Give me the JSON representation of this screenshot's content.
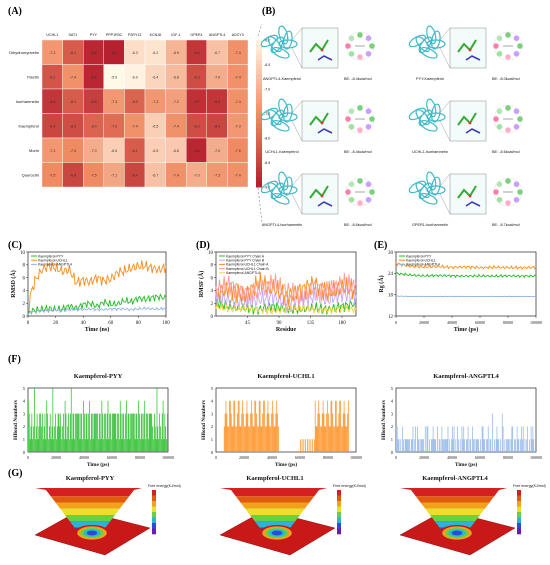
{
  "panel_labels": [
    "(A)",
    "(B)",
    "(C)",
    "(D)",
    "(E)",
    "(F)",
    "(G)"
  ],
  "colors": {
    "heat_low": "#b2182b",
    "heat_mid": "#ef8a62",
    "heat_high": "#fff2e0",
    "pyy": "#22bb22",
    "uchl1": "#ff8c1a",
    "angptl4": "#8fb4e6",
    "pyy_chain_b": "#c3a6ff",
    "uchl1_chain_b": "#ff9999"
  },
  "chart_data": [
    {
      "id": "A",
      "type": "heatmap",
      "columns": [
        "UCHL1",
        "SAT1",
        "PYY",
        "PPP1R3C",
        "P2RY13",
        "KCNJ8",
        "IGF-1",
        "GPER1",
        "ANGPTL4",
        "ADCY3"
      ],
      "rows": [
        "Dihydromyricetin",
        "Fisetin",
        "Isorhamnetin",
        "Kaempferol",
        "Morin",
        "Quercetin"
      ],
      "values": [
        [
          -7.3,
          -8.1,
          -8.8,
          -8.9,
          -6.3,
          -6.2,
          -6.9,
          -8.6,
          -6.7,
          -7.4
        ],
        [
          -8.2,
          -7.4,
          -8.8,
          -5.9,
          -6.0,
          -6.4,
          -6.8,
          -8.3,
          -7.0,
          -7.4
        ],
        [
          -8.6,
          -8.1,
          -8.5,
          -7.3,
          -8.0,
          -7.3,
          -7.2,
          -8.7,
          -8.6,
          -7.4
        ],
        [
          -8.4,
          -8.3,
          -8.0,
          -7.9,
          -7.4,
          -6.5,
          -7.4,
          -8.3,
          -8.4,
          -7.3
        ],
        [
          -7.3,
          -7.5,
          -7.0,
          -6.5,
          -8.1,
          -6.5,
          -6.6,
          -8.8,
          -7.0,
          -7.5
        ],
        [
          -7.5,
          -8.4,
          -7.5,
          -7.1,
          -8.4,
          -6.7,
          -7.4,
          -7.0,
          -7.3,
          -7.4
        ]
      ],
      "colorbar_ticks": [
        -6.0,
        -6.5,
        -7.0,
        -7.5,
        -8.0,
        -8.5,
        -9.0
      ]
    },
    {
      "id": "C",
      "type": "line",
      "xlabel": "Time (ns)",
      "ylabel": "RMSD (Å)",
      "xlim": [
        0,
        100
      ],
      "ylim": [
        0,
        10
      ],
      "xticks": [
        0,
        20,
        40,
        60,
        80,
        100
      ],
      "yticks": [
        0,
        2,
        4,
        6,
        8,
        10
      ],
      "legend_position": "top-left",
      "series": [
        {
          "name": "Kaempferol-PYY",
          "color": "#22bb22",
          "x": [
            0,
            2,
            5,
            10,
            15,
            20,
            25,
            30,
            35,
            40,
            45,
            50,
            55,
            60,
            65,
            70,
            75,
            80,
            85,
            90,
            95,
            100
          ],
          "y": [
            0.2,
            0.8,
            0.9,
            1.0,
            1.2,
            1.0,
            1.1,
            1.6,
            1.2,
            1.8,
            2.0,
            1.5,
            2.2,
            1.8,
            1.9,
            2.4,
            2.2,
            2.8,
            2.6,
            2.9,
            3.0,
            2.8
          ]
        },
        {
          "name": "Kaempferol-UCHL1",
          "color": "#ff8c1a",
          "x": [
            0,
            2,
            5,
            10,
            15,
            20,
            25,
            30,
            35,
            40,
            45,
            50,
            55,
            60,
            65,
            70,
            75,
            80,
            85,
            90,
            95,
            100
          ],
          "y": [
            0.5,
            3.5,
            5.5,
            7.2,
            7.8,
            7.5,
            7.0,
            7.2,
            5.2,
            5.6,
            5.3,
            6.0,
            5.5,
            5.8,
            6.8,
            7.0,
            7.5,
            7.8,
            7.8,
            7.5,
            7.2,
            7.6
          ]
        },
        {
          "name": "Kaempferol-ANGPTL4",
          "color": "#8fb4e6",
          "x": [
            0,
            2,
            5,
            10,
            15,
            20,
            25,
            30,
            35,
            40,
            45,
            50,
            55,
            60,
            65,
            70,
            75,
            80,
            85,
            90,
            95,
            100
          ],
          "y": [
            0.2,
            0.6,
            0.7,
            0.8,
            0.8,
            0.9,
            0.9,
            1.0,
            1.0,
            1.0,
            1.1,
            1.0,
            1.0,
            1.1,
            1.1,
            1.1,
            1.0,
            1.1,
            1.2,
            1.1,
            1.1,
            1.2
          ]
        }
      ]
    },
    {
      "id": "D",
      "type": "line",
      "xlabel": "Residue",
      "ylabel": "RMSF (Å)",
      "xlim": [
        0,
        200
      ],
      "ylim": [
        0,
        10
      ],
      "xticks": [
        45,
        90,
        135,
        180
      ],
      "yticks": [
        0,
        2,
        4,
        6,
        8,
        10
      ],
      "legend_position": "top-left",
      "series": [
        {
          "name": "Kaempferol-PYY Chain A",
          "color": "#22bb22",
          "x": [
            0,
            20,
            40,
            60,
            80,
            100,
            120,
            140,
            160,
            180,
            200
          ],
          "y": [
            2.0,
            1.5,
            1.2,
            1.0,
            1.5,
            1.2,
            1.0,
            1.3,
            1.0,
            1.5,
            2.0
          ]
        },
        {
          "name": "Kaempferol-PYY Chain B",
          "color": "#c3a6ff",
          "x": [
            0,
            20,
            40,
            60,
            80,
            100,
            120,
            140,
            160,
            180,
            200
          ],
          "y": [
            3.0,
            2.5,
            2.0,
            2.5,
            3.0,
            2.0,
            2.5,
            3.0,
            2.5,
            3.5,
            3.0
          ]
        },
        {
          "name": "Kaempferol-UCHL1 Chain A",
          "color": "#ff8c1a",
          "x": [
            0,
            20,
            40,
            60,
            80,
            100,
            120,
            140,
            160,
            180,
            200
          ],
          "y": [
            3.5,
            4.5,
            3.0,
            5.0,
            4.5,
            3.0,
            4.0,
            5.0,
            3.5,
            4.5,
            4.0
          ]
        },
        {
          "name": "Kaempferol-UCHL1 Chain B",
          "color": "#ff9999",
          "x": [
            0,
            20,
            40,
            60,
            80,
            100,
            120,
            140,
            160,
            180,
            200
          ],
          "y": [
            4.0,
            5.0,
            3.5,
            4.0,
            5.0,
            4.0,
            3.0,
            4.5,
            4.0,
            5.0,
            4.5
          ]
        },
        {
          "name": "Kaempferol-ANGPTL4",
          "color": "#f5d142",
          "x": [
            0,
            20,
            40,
            60,
            80,
            100,
            120,
            140,
            160,
            180,
            200
          ],
          "y": [
            1.5,
            1.0,
            1.2,
            1.0,
            0.8,
            1.0,
            1.2,
            1.0,
            0.9,
            1.2,
            1.0
          ]
        }
      ]
    },
    {
      "id": "E",
      "type": "line",
      "xlabel": "Time (ps)",
      "ylabel": "Rg (Å)",
      "xlim": [
        0,
        100000
      ],
      "ylim": [
        12,
        30
      ],
      "xticks": [
        0,
        20000,
        40000,
        60000,
        80000,
        100000
      ],
      "yticks": [
        12,
        18,
        24,
        30
      ],
      "legend_position": "top-left",
      "series": [
        {
          "name": "Kaempferol-PYY",
          "color": "#22bb22",
          "x": [
            0,
            10000,
            20000,
            30000,
            40000,
            50000,
            60000,
            70000,
            80000,
            90000,
            100000
          ],
          "y": [
            24.0,
            23.5,
            23.3,
            23.4,
            23.3,
            23.2,
            23.3,
            23.2,
            23.3,
            23.2,
            23.3
          ]
        },
        {
          "name": "Kaempferol-UCHL1",
          "color": "#ff8c1a",
          "x": [
            0,
            10000,
            20000,
            30000,
            40000,
            50000,
            60000,
            70000,
            80000,
            90000,
            100000
          ],
          "y": [
            26.8,
            26.0,
            25.8,
            25.9,
            25.7,
            25.8,
            25.6,
            25.7,
            25.6,
            25.6,
            25.7
          ]
        },
        {
          "name": "Kaempferol-ANGPTL4",
          "color": "#8fb4e6",
          "x": [
            0,
            10000,
            20000,
            30000,
            40000,
            50000,
            60000,
            70000,
            80000,
            90000,
            100000
          ],
          "y": [
            17.6,
            17.5,
            17.5,
            17.5,
            17.5,
            17.5,
            17.5,
            17.5,
            17.5,
            17.5,
            17.5
          ]
        }
      ]
    }
  ],
  "panel_B": {
    "complexes": [
      {
        "label": "ANGPTL4-Kaempferol",
        "be": "BE: -8.4kcal/mol"
      },
      {
        "label": "PYY-Kaempferol",
        "be": "BE: -8.0kcal/mol"
      },
      {
        "label": "UCHL1-Kaempferol",
        "be": "BE: -8.4kcal/mol"
      },
      {
        "label": "UCHL1-Isorhamnetin",
        "be": "BE: -8.6kcal/mol"
      },
      {
        "label": "ANGPTL4-Isorhamnetin",
        "be": "BE: -8.6kcal/mol"
      },
      {
        "label": "GPER1-Isorhamnetin",
        "be": "BE: -8.7kcal/mol"
      }
    ]
  },
  "panel_F": {
    "ylabel": "HBond Numbers",
    "xlabel": "Time (ps)",
    "xticks": [
      0,
      20000,
      40000,
      60000,
      80000,
      100000
    ],
    "yticks": [
      0,
      1,
      2,
      3,
      4,
      5
    ],
    "plots": [
      {
        "title": "Kaempferol-PYY",
        "color": "#22bb22"
      },
      {
        "title": "Kaempferol-UCHL1",
        "color": "#ff8c1a"
      },
      {
        "title": "Kaempferol-ANGPTL4",
        "color": "#8fb4e6"
      }
    ]
  },
  "panel_G": {
    "plots": [
      {
        "title": "Kaempferol-PYY",
        "cbar_label": "Free energy(KJ/mol)"
      },
      {
        "title": "Kaempferol-UCHL1",
        "cbar_label": "Free energy(KJ/mol)"
      },
      {
        "title": "Kaempferol-ANGPTL4",
        "cbar_label": "Free energy(KJ/mol)"
      }
    ]
  }
}
